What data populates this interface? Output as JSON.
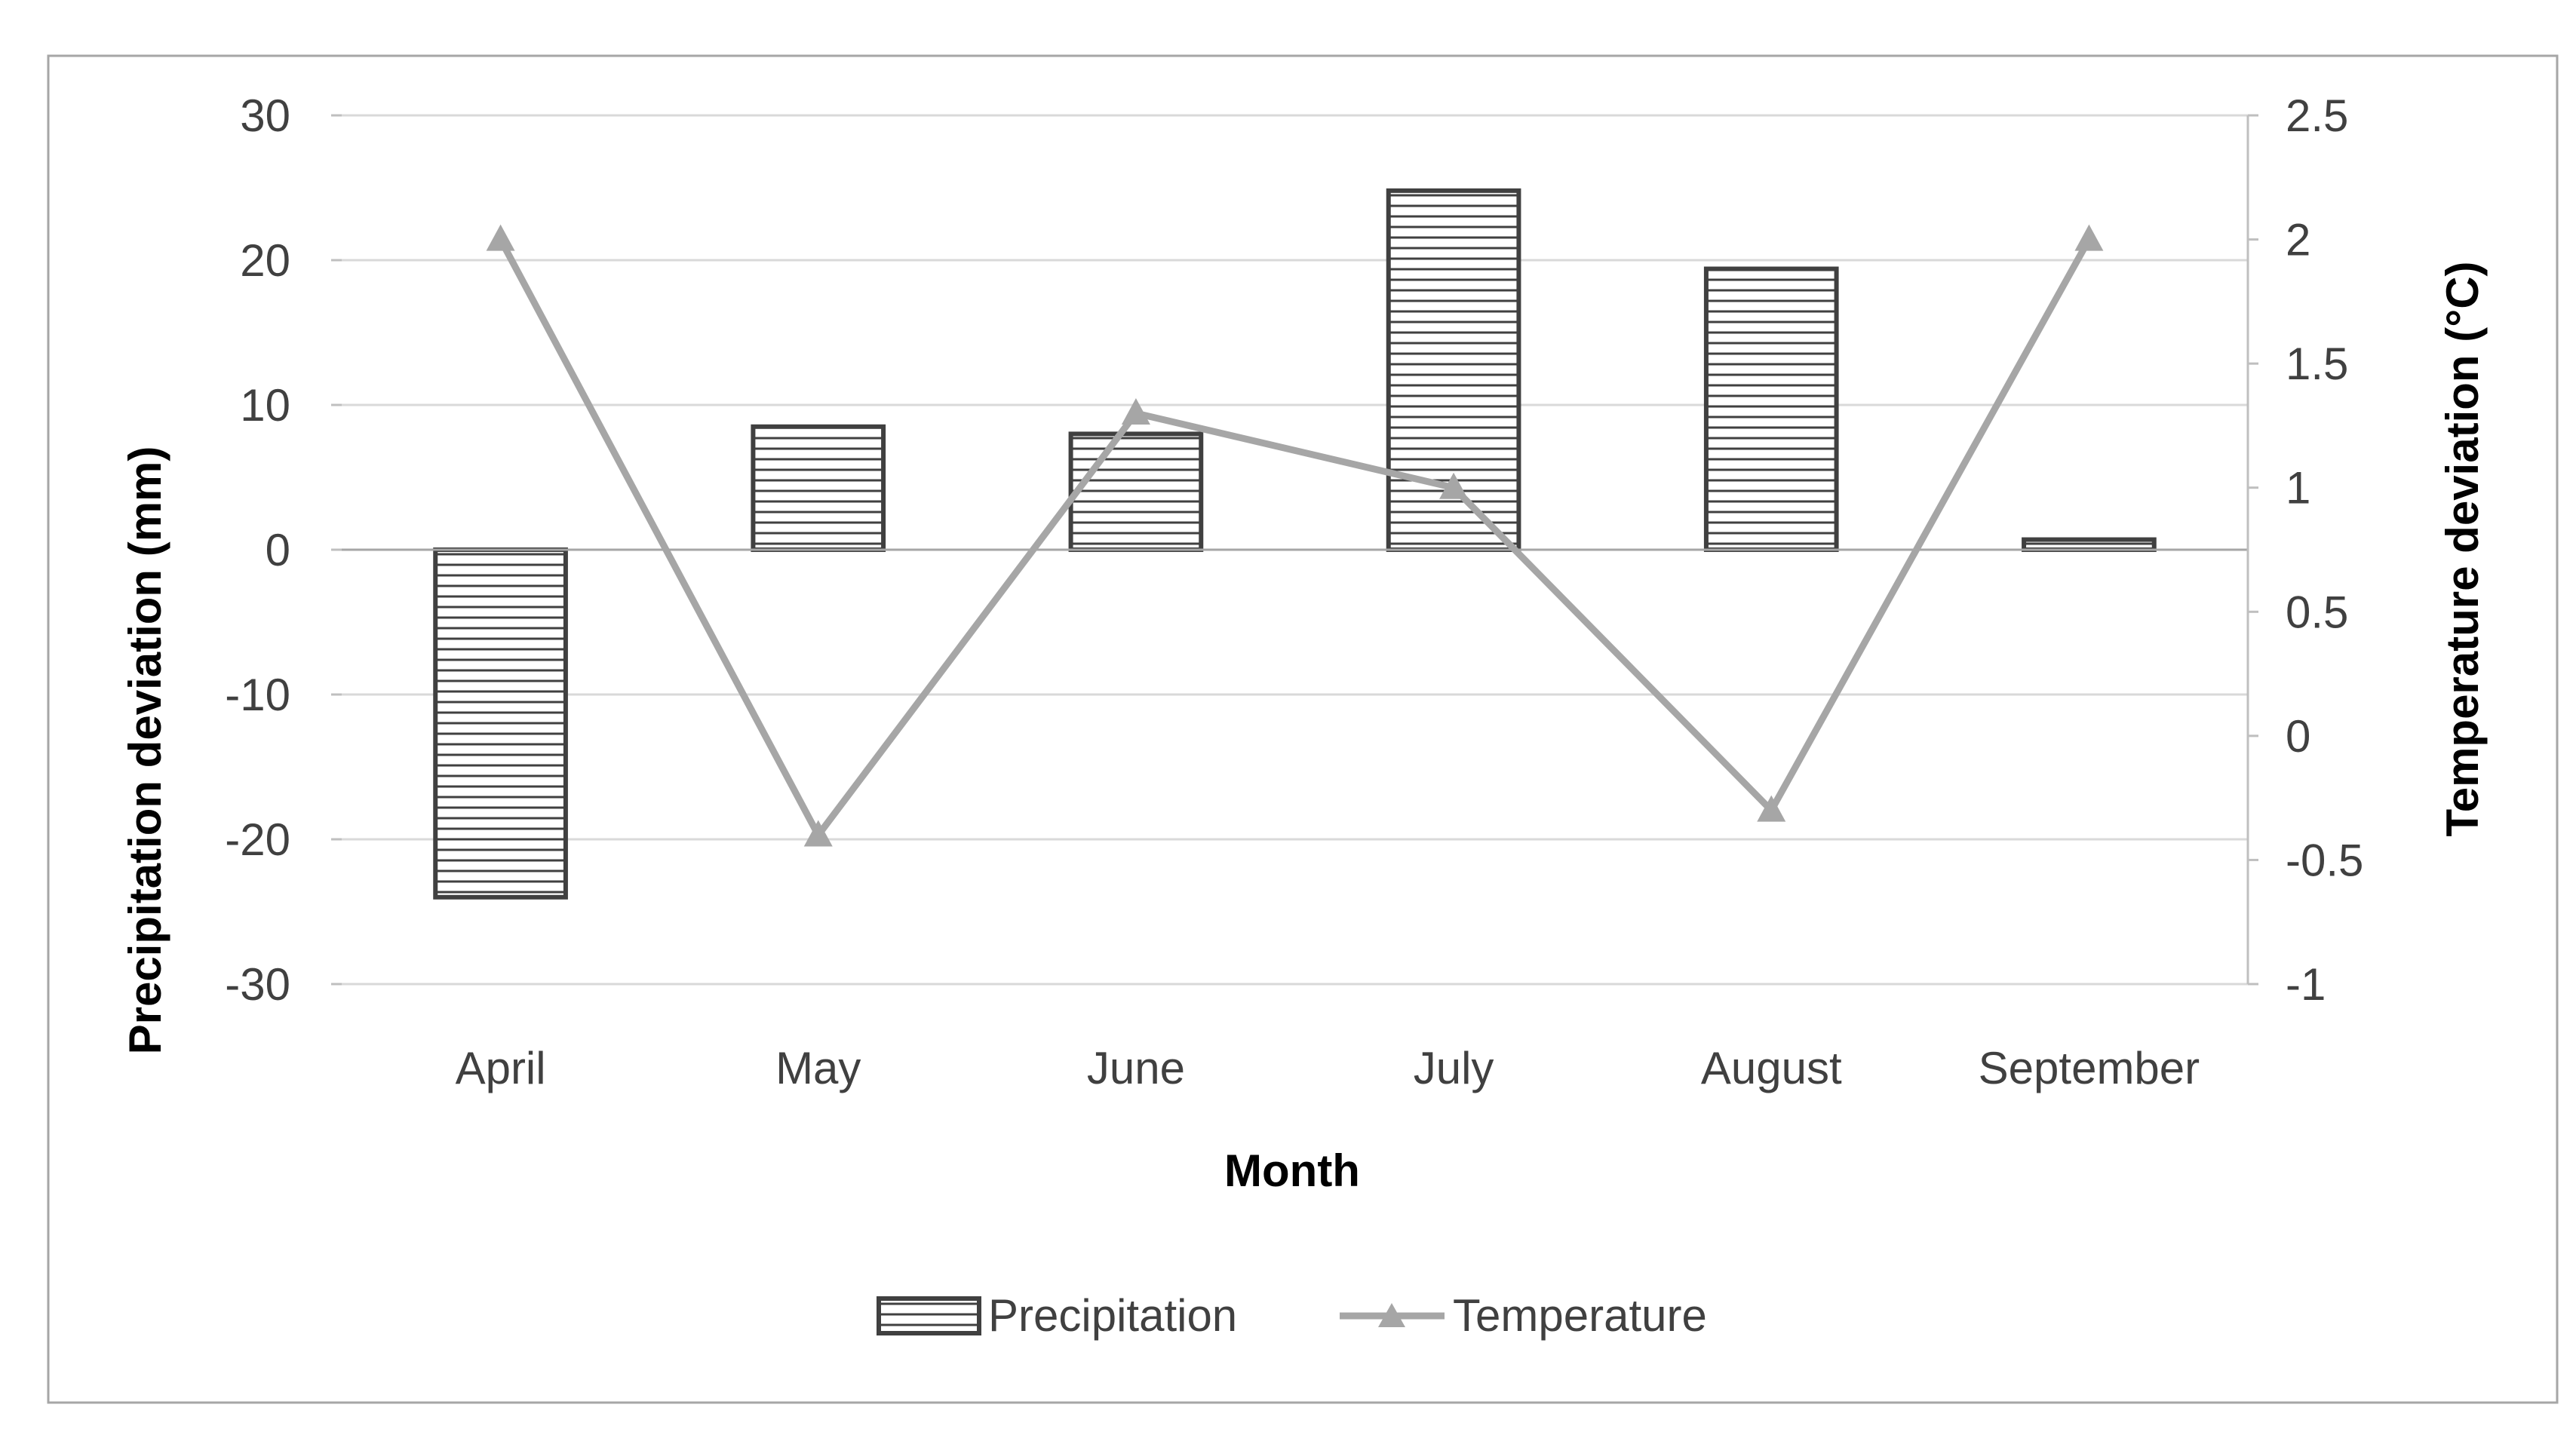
{
  "chart_data": {
    "type": "bar",
    "title": "",
    "categories": [
      "April",
      "May",
      "June",
      "July",
      "August",
      "September"
    ],
    "xlabel": "Month",
    "ylabel": "Precipitation deviation (mm)",
    "y2label": "Temperature deviation (°C)",
    "ylim": [
      -30,
      30
    ],
    "y2lim": [
      -1,
      2.5
    ],
    "yticks": [
      "30",
      "20",
      "10",
      "0",
      "-10",
      "-20",
      "-30"
    ],
    "y2ticks": [
      "2.5",
      "2",
      "1.5",
      "1",
      "0.5",
      "0",
      "-0.5",
      "-1"
    ],
    "grid": true,
    "legend_position": "bottom",
    "series": [
      {
        "name": "Precipitation",
        "type": "bar",
        "axis": "left",
        "values": [
          -24,
          8.5,
          8,
          24.8,
          19.4,
          0.7
        ]
      },
      {
        "name": "Temperature",
        "type": "line",
        "axis": "right",
        "marker": "triangle",
        "values": [
          2.0,
          -0.4,
          1.3,
          1.0,
          -0.3,
          2.0
        ]
      }
    ],
    "colors": {
      "bar_stroke": "#404040",
      "line": "#a6a6a6",
      "grid": "#d9d9d9",
      "text": "#404040"
    }
  }
}
